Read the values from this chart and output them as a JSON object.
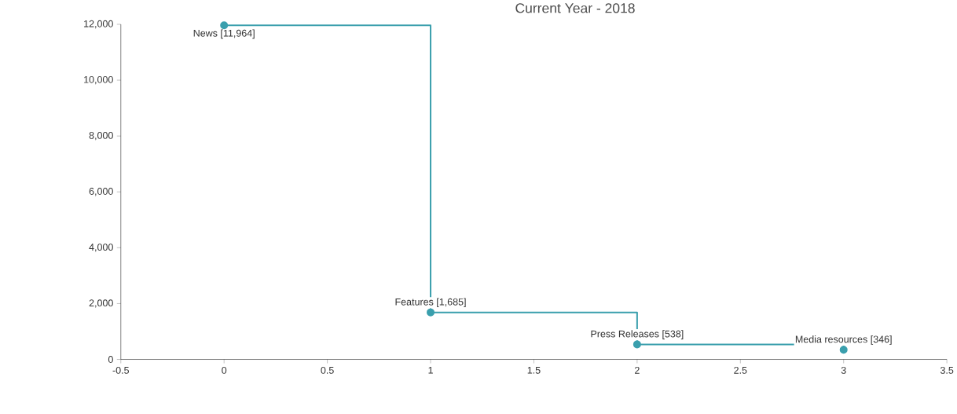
{
  "chart_data": {
    "type": "step",
    "title": "Current Year - 2018",
    "x": [
      0,
      1,
      2,
      3
    ],
    "values": [
      11964,
      1685,
      538,
      346
    ],
    "color": "#3a9fad",
    "marker": "circle",
    "xlim": [
      -0.5,
      3.5
    ],
    "xticks": [
      -0.5,
      0,
      0.5,
      1,
      1.5,
      2,
      2.5,
      3,
      3.5
    ],
    "ylim": [
      0,
      12000
    ],
    "yticks": [
      {
        "value": 0,
        "label": "0"
      },
      {
        "value": 2000,
        "label": "2,000"
      },
      {
        "value": 4000,
        "label": "4,000"
      },
      {
        "value": 6000,
        "label": "6,000"
      },
      {
        "value": 8000,
        "label": "8,000"
      },
      {
        "value": 10000,
        "label": "10,000"
      },
      {
        "value": 12000,
        "label": "12,000"
      }
    ],
    "grid": false,
    "annotations": [
      {
        "text": "News [11,964]",
        "x": 0,
        "y": 11964
      },
      {
        "text": "Features [1,685]",
        "x": 1,
        "y": 1685
      },
      {
        "text": "Press Releases [538]",
        "x": 2,
        "y": 538
      },
      {
        "text": "Media resources [346]",
        "x": 3,
        "y": 346
      }
    ]
  }
}
